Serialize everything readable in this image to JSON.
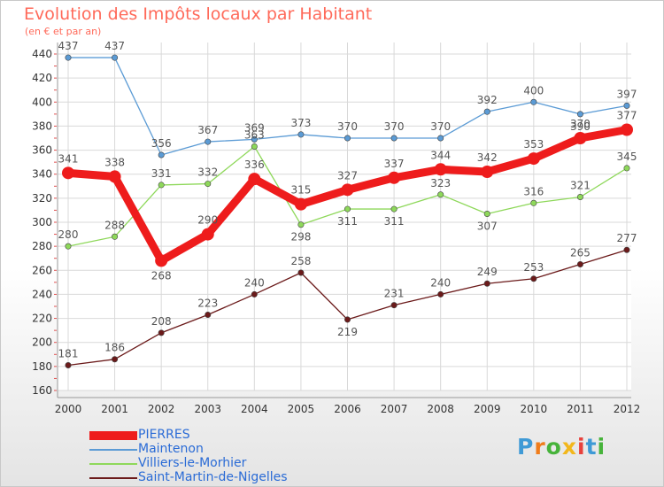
{
  "title": "Evolution des Impôts locaux par Habitant",
  "subtitle": "(en € et par an)",
  "logo": {
    "text": "Proxiti",
    "letter_colors": [
      "#3f9ad6",
      "#f07c1a",
      "#46b33a",
      "#f2b71b",
      "#e8413c",
      "#3f9ad6",
      "#46b33a"
    ]
  },
  "chart_data": {
    "type": "line",
    "x": [
      2000,
      2001,
      2002,
      2003,
      2004,
      2005,
      2006,
      2007,
      2008,
      2009,
      2010,
      2011,
      2012
    ],
    "ylim": [
      160,
      440
    ],
    "yticks": [
      160,
      180,
      200,
      220,
      240,
      260,
      280,
      300,
      320,
      340,
      360,
      380,
      400,
      420,
      440
    ],
    "grid": true,
    "legend_position": "bottom-left",
    "series": [
      {
        "name": "PIERRES",
        "color": "#ee1c1c",
        "values": [
          341,
          338,
          268,
          290,
          336,
          315,
          327,
          337,
          344,
          342,
          353,
          370,
          377
        ]
      },
      {
        "name": "Maintenon",
        "color": "#5b9bd5",
        "values": [
          437,
          437,
          356,
          367,
          369,
          373,
          370,
          370,
          370,
          392,
          400,
          390,
          397
        ]
      },
      {
        "name": "Villiers-le-Morhier",
        "color": "#8ed85a",
        "values": [
          280,
          288,
          331,
          332,
          363,
          298,
          311,
          311,
          323,
          307,
          316,
          321,
          345
        ]
      },
      {
        "name": "Saint-Martin-de-Nigelles",
        "color": "#6b1a1a",
        "values": [
          181,
          186,
          208,
          223,
          240,
          258,
          219,
          231,
          240,
          249,
          253,
          265,
          277
        ]
      }
    ]
  }
}
